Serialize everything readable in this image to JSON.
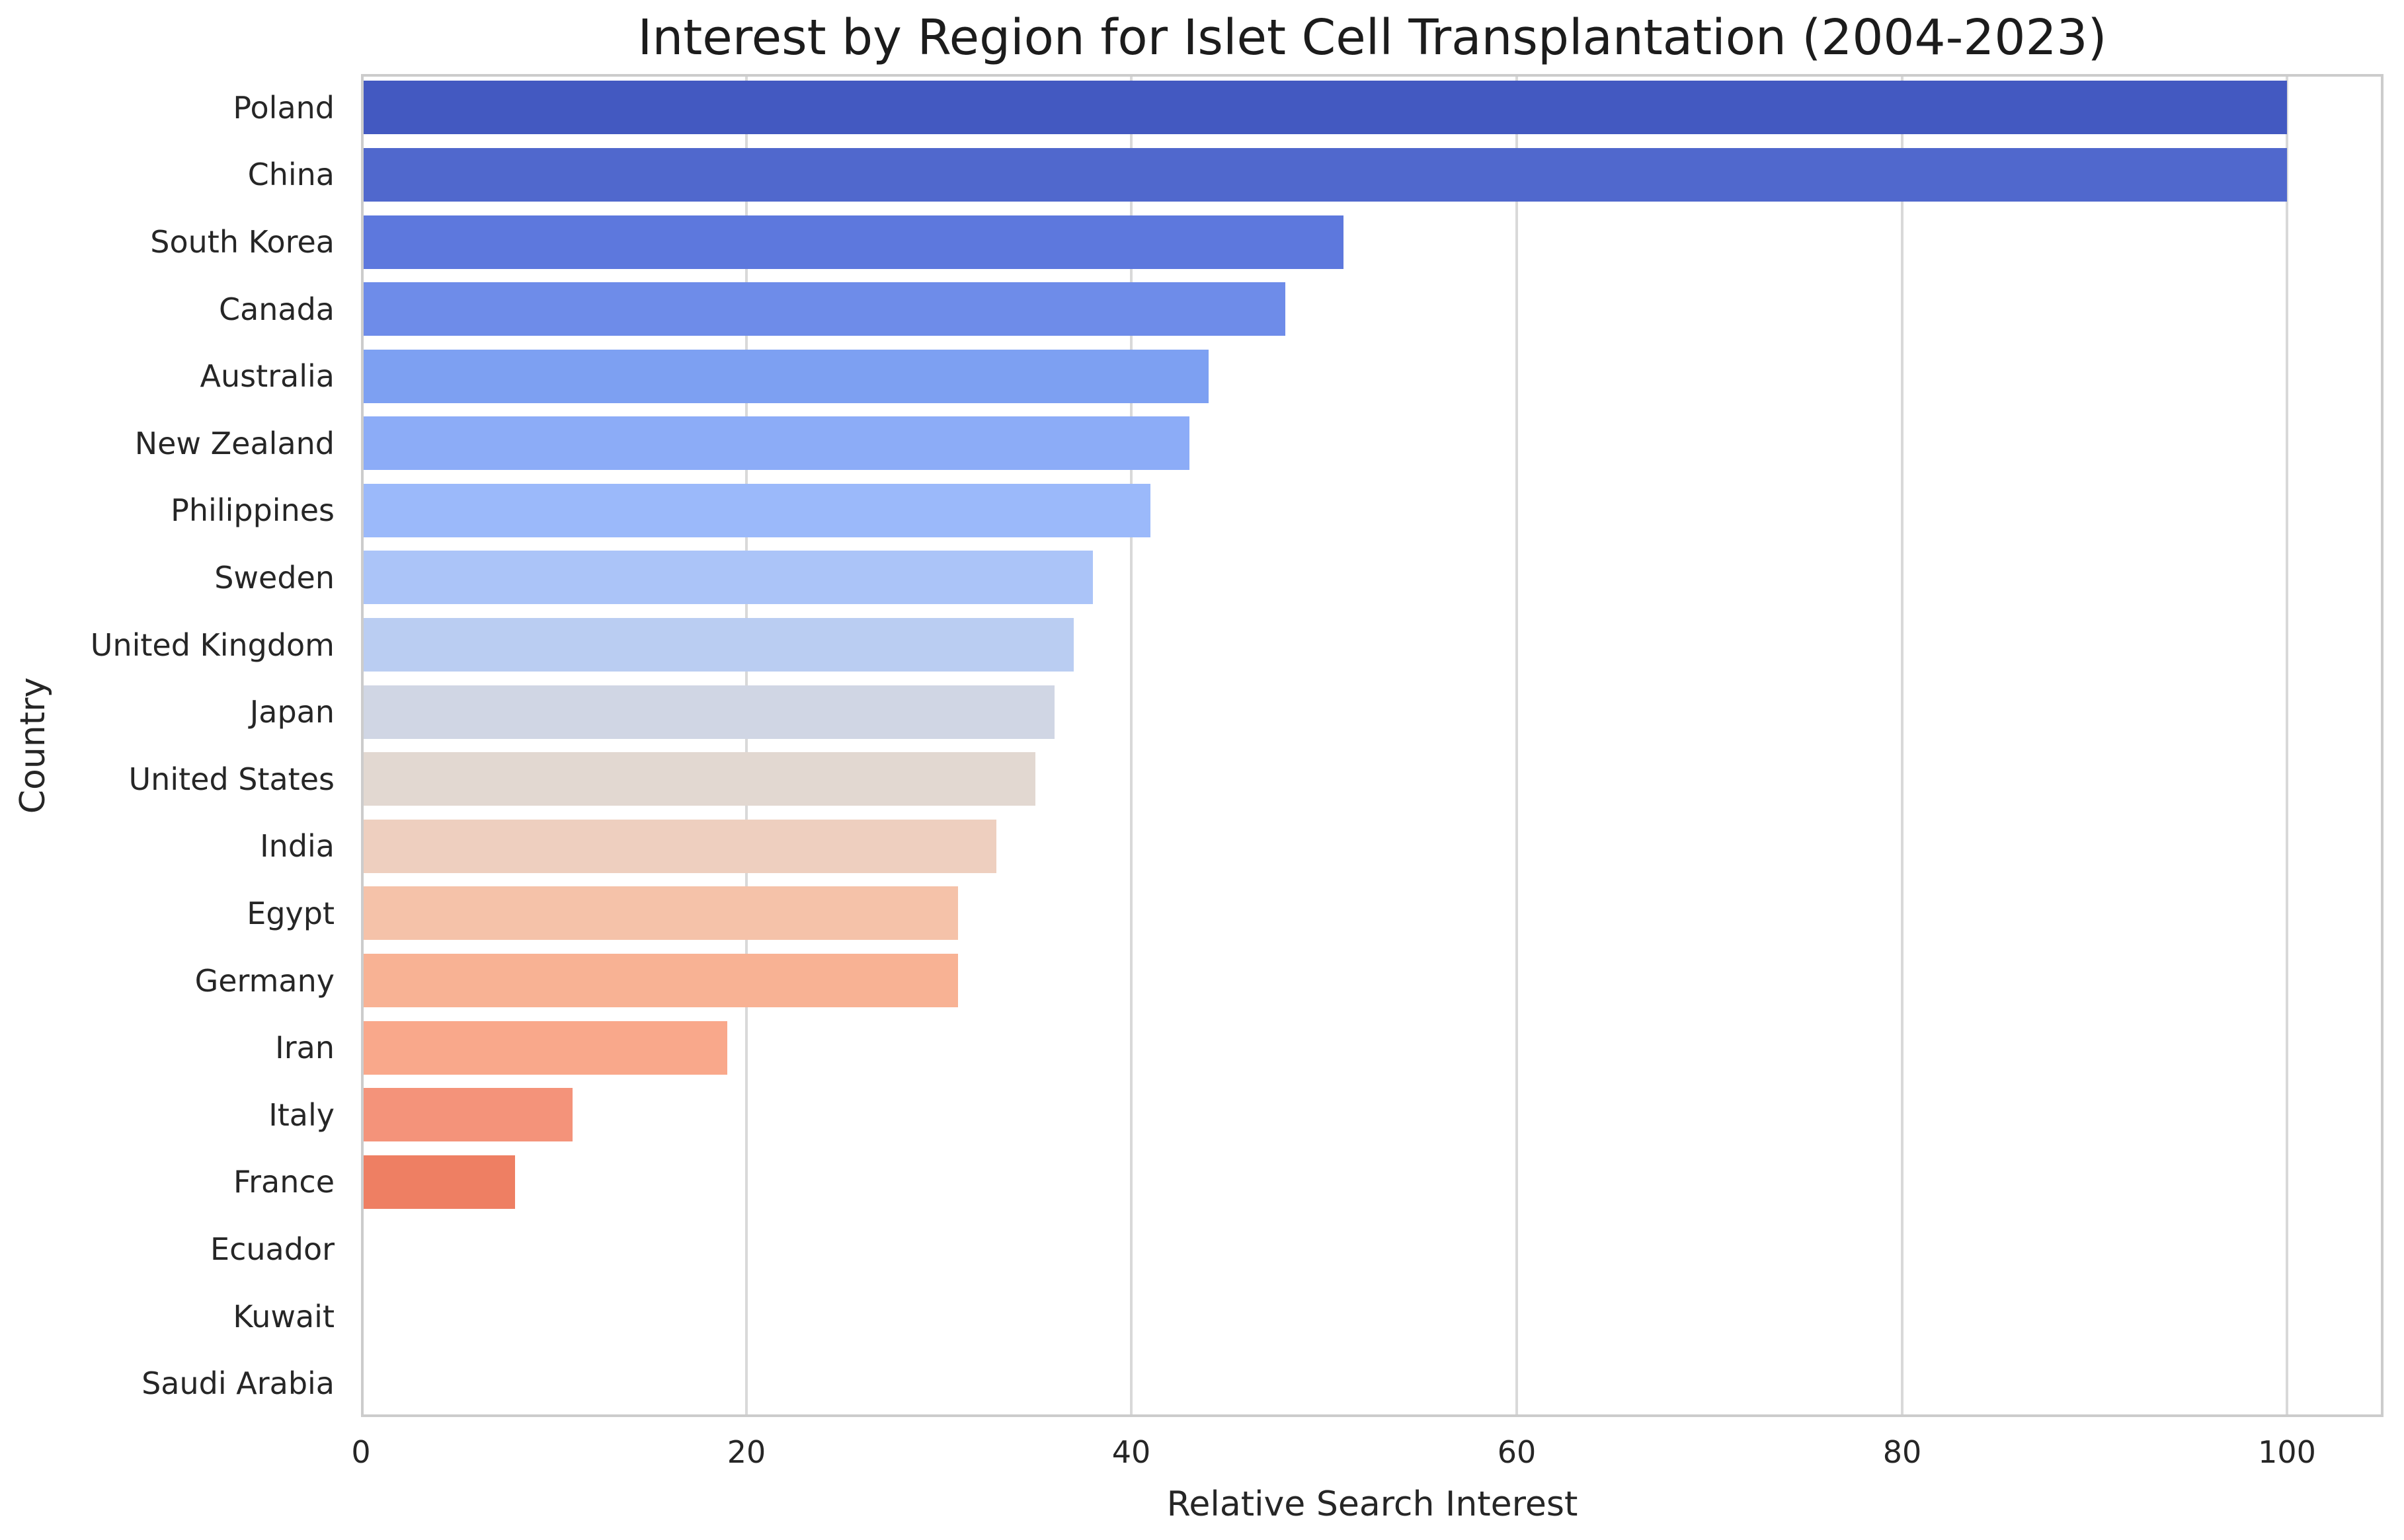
{
  "chart_data": {
    "type": "bar",
    "orientation": "horizontal",
    "title": "Interest by Region for Islet Cell Transplantation (2004-2023)",
    "xlabel": "Relative Search Interest",
    "ylabel": "Country",
    "categories": [
      "Poland",
      "China",
      "South Korea",
      "Canada",
      "Australia",
      "New Zealand",
      "Philippines",
      "Sweden",
      "United Kingdom",
      "Japan",
      "United States",
      "India",
      "Egypt",
      "Germany",
      "Iran",
      "Italy",
      "France",
      "Ecuador",
      "Kuwait",
      "Saudi Arabia"
    ],
    "values": [
      100,
      100,
      51,
      48,
      44,
      43,
      41,
      38,
      37,
      36,
      35,
      33,
      31,
      31,
      19,
      11,
      8,
      0,
      0,
      0
    ],
    "bar_colors": [
      "#4359c1",
      "#5068cd",
      "#5d78dd",
      "#6e8ce9",
      "#7da0f2",
      "#8cacf7",
      "#9bb9fa",
      "#abc4f8",
      "#bacdf2",
      "#d0d6e4",
      "#e2d8d1",
      "#eecfbf",
      "#f5c2a9",
      "#f8b294",
      "#f9a88b",
      "#f4937a",
      "#ee7f63",
      "#e06a50",
      "#d5543f",
      "#b43527"
    ],
    "xlim": [
      0,
      105
    ],
    "x_ticks": [
      0,
      20,
      40,
      60,
      80,
      100
    ],
    "grid": "vertical",
    "grid_color": "#d9d9d9",
    "spine_color": "#cccccc",
    "background": "#ffffff",
    "legend": "none"
  }
}
